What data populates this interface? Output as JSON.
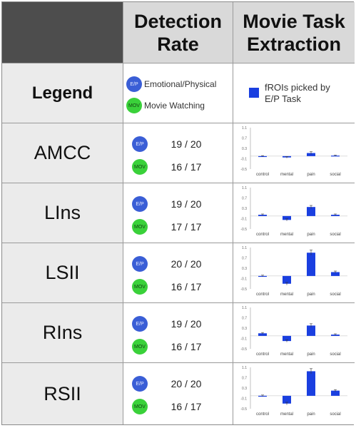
{
  "header": {
    "col2": "Detection Rate",
    "col3": "Movie Task Extraction"
  },
  "legend": {
    "label": "Legend",
    "ep_badge": "E/P",
    "ep_label": "Emotional/Physical",
    "mov_badge": "MOV",
    "mov_label": "Movie Watching",
    "froi_label": "fROIs picked by E/P Task",
    "bar_color": "#1a3fe0"
  },
  "rows": [
    {
      "label": "AMCC",
      "ep_rate": "19 / 20",
      "mov_rate": "16 / 17"
    },
    {
      "label": "LIns",
      "ep_rate": "19 / 20",
      "mov_rate": "17 / 17"
    },
    {
      "label": "LSII",
      "ep_rate": "20 / 20",
      "mov_rate": "16 / 17"
    },
    {
      "label": "RIns",
      "ep_rate": "19 / 20",
      "mov_rate": "16 / 17"
    },
    {
      "label": "RSII",
      "ep_rate": "20 / 20",
      "mov_rate": "16 / 17"
    }
  ],
  "chart_data": [
    {
      "type": "bar",
      "categories": [
        "control",
        "mental",
        "pain",
        "social"
      ],
      "values": [
        0.0,
        -0.05,
        0.12,
        0.02
      ],
      "errors": [
        0.02,
        0.03,
        0.05,
        0.02
      ],
      "ylim": [
        -0.5,
        1.1
      ],
      "yticks": [
        "1.1",
        "0.7",
        "0.3",
        "-0.1",
        "-0.5"
      ]
    },
    {
      "type": "bar",
      "categories": [
        "control",
        "mental",
        "pain",
        "social"
      ],
      "values": [
        0.05,
        -0.15,
        0.35,
        0.05
      ],
      "errors": [
        0.03,
        0.04,
        0.06,
        0.03
      ],
      "ylim": [
        -0.5,
        1.1
      ],
      "yticks": [
        "1.1",
        "0.7",
        "0.3",
        "-0.1",
        "-0.5"
      ]
    },
    {
      "type": "bar",
      "categories": [
        "control",
        "mental",
        "pain",
        "social"
      ],
      "values": [
        0.0,
        -0.3,
        0.9,
        0.15
      ],
      "errors": [
        0.03,
        0.05,
        0.1,
        0.04
      ],
      "ylim": [
        -0.5,
        1.1
      ],
      "yticks": [
        "1.1",
        "0.7",
        "0.3",
        "-0.1",
        "-0.5"
      ]
    },
    {
      "type": "bar",
      "categories": [
        "control",
        "mental",
        "pain",
        "social"
      ],
      "values": [
        0.1,
        -0.2,
        0.4,
        0.05
      ],
      "errors": [
        0.03,
        0.04,
        0.07,
        0.03
      ],
      "ylim": [
        -0.5,
        1.1
      ],
      "yticks": [
        "1.1",
        "0.7",
        "0.3",
        "-0.1",
        "-0.5"
      ]
    },
    {
      "type": "bar",
      "categories": [
        "control",
        "mental",
        "pain",
        "social"
      ],
      "values": [
        0.0,
        -0.3,
        0.95,
        0.2
      ],
      "errors": [
        0.03,
        0.05,
        0.1,
        0.04
      ],
      "ylim": [
        -0.5,
        1.1
      ],
      "yticks": [
        "1.1",
        "0.7",
        "0.3",
        "-0.1",
        "-0.5"
      ]
    }
  ]
}
